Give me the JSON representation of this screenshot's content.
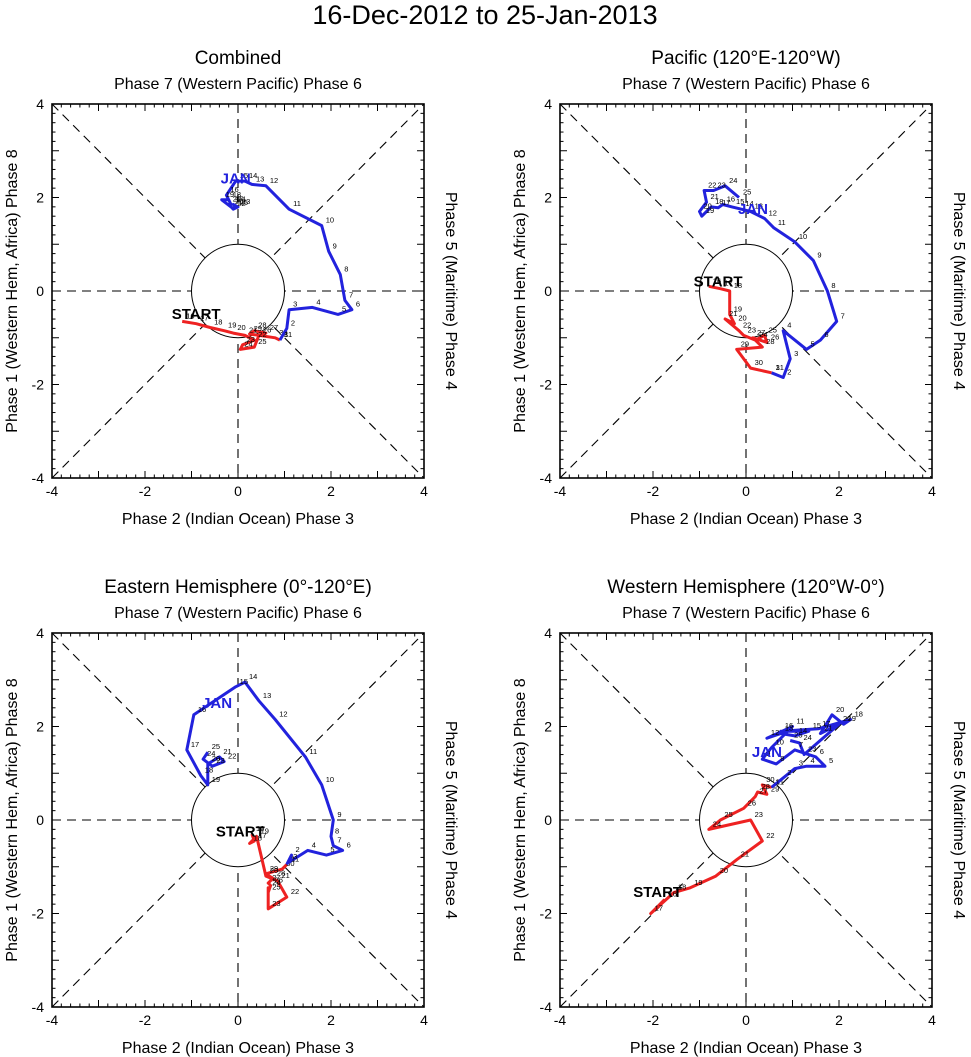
{
  "figure": {
    "title": "16-Dec-2012 to 25-Jan-2013",
    "colors": {
      "december": "#ee2222",
      "january": "#2222dd",
      "axes": "#000000"
    }
  },
  "chart_data": [
    {
      "type": "line",
      "title": "Combined",
      "top_label": "Phase 7 (Western Pacific) Phase 6",
      "xlabel": "Phase 2 (Indian Ocean) Phase 3",
      "ylabel_left": "Phase 1 (Western Hem, Africa) Phase 8",
      "ylabel_right": "Phase 5 (Maritime) Phase 4",
      "xlim": [
        -4,
        4
      ],
      "ylim": [
        -4,
        4
      ],
      "xticks": [
        "-4",
        "-2",
        "0",
        "2",
        "4"
      ],
      "yticks": [
        "-4",
        "-2",
        "0",
        "2",
        "4"
      ],
      "start_label": "START",
      "start_pos": [
        -0.9,
        -0.6
      ],
      "month_label": "JAN",
      "month_pos": [
        -0.05,
        2.3
      ],
      "series": [
        {
          "name": "December",
          "color": "#ee2222",
          "labels": [
            "16",
            "17",
            "18",
            "19",
            "20",
            "21",
            "22",
            "23",
            "24",
            "25",
            "26",
            "27",
            "28",
            "29",
            "30",
            "31"
          ],
          "points": [
            [
              -1.2,
              -0.65
            ],
            [
              -0.9,
              -0.7
            ],
            [
              -0.6,
              -0.78
            ],
            [
              -0.3,
              -0.85
            ],
            [
              -0.1,
              -0.9
            ],
            [
              0.15,
              -0.95
            ],
            [
              0.35,
              -1.05
            ],
            [
              0.1,
              -1.15
            ],
            [
              0.05,
              -1.25
            ],
            [
              0.35,
              -1.2
            ],
            [
              0.45,
              -0.95
            ],
            [
              0.6,
              -0.9
            ],
            [
              0.35,
              -0.85
            ],
            [
              0.25,
              -0.92
            ],
            [
              0.8,
              -1.0
            ],
            [
              0.9,
              -1.05
            ]
          ]
        },
        {
          "name": "January",
          "color": "#2222dd",
          "labels": [
            "1",
            "2",
            "3",
            "4",
            "5",
            "6",
            "7",
            "8",
            "9",
            "10",
            "11",
            "12",
            "13",
            "14",
            "15",
            "16",
            "17",
            "18",
            "19",
            "20",
            "21",
            "22",
            "23",
            "24",
            "25"
          ],
          "points": [
            [
              0.9,
              -1.05
            ],
            [
              1.05,
              -0.8
            ],
            [
              1.1,
              -0.4
            ],
            [
              1.6,
              -0.35
            ],
            [
              2.15,
              -0.5
            ],
            [
              2.45,
              -0.4
            ],
            [
              2.3,
              -0.2
            ],
            [
              2.2,
              0.35
            ],
            [
              1.95,
              0.85
            ],
            [
              1.8,
              1.4
            ],
            [
              1.1,
              1.75
            ],
            [
              0.6,
              2.25
            ],
            [
              0.3,
              2.28
            ],
            [
              0.15,
              2.35
            ],
            [
              -0.05,
              2.35
            ],
            [
              -0.25,
              2.05
            ],
            [
              -0.15,
              1.85
            ],
            [
              -0.2,
              1.95
            ],
            [
              -0.35,
              1.95
            ],
            [
              -0.15,
              1.8
            ],
            [
              -0.2,
              1.85
            ],
            [
              -0.1,
              1.75
            ],
            [
              0.0,
              1.8
            ],
            [
              -0.1,
              1.85
            ],
            [
              -0.05,
              1.78
            ]
          ]
        }
      ]
    },
    {
      "type": "line",
      "title": "Pacific (120°E-120°W)",
      "top_label": "Phase 7 (Western Pacific) Phase 6",
      "xlabel": "Phase 2 (Indian Ocean) Phase 3",
      "ylabel_left": "Phase 1 (Western Hem, Africa) Phase 8",
      "ylabel_right": "Phase 5 (Maritime) Phase 4",
      "xlim": [
        -4,
        4
      ],
      "ylim": [
        -4,
        4
      ],
      "xticks": [
        "-4",
        "-2",
        "0",
        "2",
        "4"
      ],
      "yticks": [
        "-4",
        "-2",
        "0",
        "2",
        "4"
      ],
      "start_label": "START",
      "start_pos": [
        -0.6,
        0.1
      ],
      "month_label": "JAN",
      "month_pos": [
        0.15,
        1.65
      ],
      "series": [
        {
          "name": "December",
          "color": "#ee2222",
          "labels": [
            "16",
            "17",
            "18",
            "19",
            "20",
            "21",
            "22",
            "23",
            "24",
            "25",
            "26",
            "27",
            "28",
            "29",
            "30",
            "31"
          ],
          "points": [
            [
              -0.8,
              0.1
            ],
            [
              -0.55,
              0.05
            ],
            [
              -0.35,
              0.0
            ],
            [
              -0.35,
              -0.5
            ],
            [
              -0.25,
              -0.7
            ],
            [
              -0.45,
              -0.6
            ],
            [
              -0.15,
              -0.85
            ],
            [
              -0.05,
              -0.95
            ],
            [
              0.2,
              -1.05
            ],
            [
              0.4,
              -0.95
            ],
            [
              0.45,
              -1.1
            ],
            [
              0.15,
              -1.0
            ],
            [
              0.35,
              -1.2
            ],
            [
              -0.2,
              -1.25
            ],
            [
              0.1,
              -1.65
            ],
            [
              0.55,
              -1.75
            ]
          ]
        },
        {
          "name": "January",
          "color": "#2222dd",
          "labels": [
            "1",
            "2",
            "3",
            "4",
            "5",
            "6",
            "7",
            "8",
            "9",
            "10",
            "11",
            "12",
            "13",
            "14",
            "15",
            "16",
            "17",
            "18",
            "19",
            "20",
            "21",
            "22",
            "23",
            "24",
            "25"
          ],
          "points": [
            [
              0.55,
              -1.75
            ],
            [
              0.8,
              -1.85
            ],
            [
              0.95,
              -1.45
            ],
            [
              0.8,
              -0.85
            ],
            [
              1.3,
              -1.25
            ],
            [
              1.6,
              -1.05
            ],
            [
              1.95,
              -0.65
            ],
            [
              1.75,
              0.0
            ],
            [
              1.45,
              0.65
            ],
            [
              1.05,
              1.05
            ],
            [
              0.6,
              1.35
            ],
            [
              0.4,
              1.55
            ],
            [
              0.1,
              1.7
            ],
            [
              -0.1,
              1.75
            ],
            [
              -0.3,
              1.8
            ],
            [
              -0.5,
              1.85
            ],
            [
              -0.6,
              1.78
            ],
            [
              -0.75,
              1.8
            ],
            [
              -0.95,
              1.6
            ],
            [
              -1.0,
              1.7
            ],
            [
              -0.85,
              1.9
            ],
            [
              -0.9,
              2.15
            ],
            [
              -0.7,
              2.15
            ],
            [
              -0.45,
              2.25
            ],
            [
              -0.15,
              2.0
            ]
          ]
        }
      ]
    },
    {
      "type": "line",
      "title": "Eastern Hemisphere (0°-120°E)",
      "top_label": "Phase 7 (Western Pacific) Phase 6",
      "xlabel": "Phase 2 (Indian Ocean) Phase 3",
      "ylabel_left": "Phase 1 (Western Hem, Africa) Phase 8",
      "ylabel_right": "Phase 5 (Maritime) Phase 4",
      "xlim": [
        -4,
        4
      ],
      "ylim": [
        -4,
        4
      ],
      "xticks": [
        "-4",
        "-2",
        "0",
        "2",
        "4"
      ],
      "yticks": [
        "-4",
        "-2",
        "0",
        "2",
        "4"
      ],
      "start_label": "START",
      "start_pos": [
        0.05,
        -0.35
      ],
      "month_label": "JAN",
      "month_pos": [
        -0.45,
        2.4
      ],
      "series": [
        {
          "name": "December",
          "color": "#ee2222",
          "labels": [
            "16",
            "17",
            "18",
            "19",
            "20",
            "21",
            "22",
            "23",
            "24",
            "25",
            "26",
            "27",
            "28",
            "29",
            "30",
            "31"
          ],
          "points": [
            [
              0.3,
              -0.3
            ],
            [
              0.35,
              -0.45
            ],
            [
              0.25,
              -0.5
            ],
            [
              0.4,
              -0.35
            ],
            [
              0.6,
              -1.2
            ],
            [
              0.85,
              -1.3
            ],
            [
              1.05,
              -1.65
            ],
            [
              0.65,
              -1.9
            ],
            [
              0.65,
              -1.45
            ],
            [
              0.65,
              -1.55
            ],
            [
              0.7,
              -1.4
            ],
            [
              0.65,
              -1.35
            ],
            [
              0.75,
              -1.25
            ],
            [
              0.6,
              -1.15
            ],
            [
              0.95,
              -1.05
            ],
            [
              1.05,
              -0.95
            ]
          ]
        },
        {
          "name": "January",
          "color": "#2222dd",
          "labels": [
            "1",
            "2",
            "3",
            "4",
            "5",
            "6",
            "7",
            "8",
            "9",
            "10",
            "11",
            "12",
            "13",
            "14",
            "15",
            "16",
            "17",
            "18",
            "19",
            "20",
            "21",
            "22",
            "23",
            "24",
            "25"
          ],
          "points": [
            [
              1.05,
              -0.95
            ],
            [
              1.15,
              -0.75
            ],
            [
              1.1,
              -0.9
            ],
            [
              1.5,
              -0.65
            ],
            [
              1.9,
              -0.75
            ],
            [
              2.25,
              -0.65
            ],
            [
              2.05,
              -0.55
            ],
            [
              2.0,
              -0.35
            ],
            [
              2.05,
              0.0
            ],
            [
              1.8,
              0.75
            ],
            [
              1.45,
              1.35
            ],
            [
              0.8,
              2.15
            ],
            [
              0.45,
              2.55
            ],
            [
              0.15,
              2.95
            ],
            [
              -0.05,
              2.85
            ],
            [
              -0.95,
              2.25
            ],
            [
              -1.1,
              1.5
            ],
            [
              -0.8,
              0.95
            ],
            [
              -0.65,
              0.75
            ],
            [
              -0.65,
              1.2
            ],
            [
              -0.4,
              1.35
            ],
            [
              -0.3,
              1.25
            ],
            [
              -0.55,
              1.15
            ],
            [
              -0.75,
              1.3
            ],
            [
              -0.65,
              1.45
            ]
          ]
        }
      ]
    },
    {
      "type": "line",
      "title": "Western Hemisphere (120°W-0°)",
      "top_label": "Phase 7 (Western Pacific) Phase 6",
      "xlabel": "Phase 2 (Indian Ocean) Phase 3",
      "ylabel_left": "Phase 1 (Western Hem, Africa) Phase 8",
      "ylabel_right": "Phase 5 (Maritime) Phase 4",
      "xlim": [
        -4,
        4
      ],
      "ylim": [
        -4,
        4
      ],
      "xticks": [
        "-4",
        "-2",
        "0",
        "2",
        "4"
      ],
      "yticks": [
        "-4",
        "-2",
        "0",
        "2",
        "4"
      ],
      "start_label": "START",
      "start_pos": [
        -1.9,
        -1.65
      ],
      "month_label": "JAN",
      "month_pos": [
        0.45,
        1.35
      ],
      "series": [
        {
          "name": "December",
          "color": "#ee2222",
          "labels": [
            "16",
            "17",
            "18",
            "19",
            "20",
            "21",
            "22",
            "23",
            "24",
            "25",
            "26",
            "27",
            "28",
            "29",
            "30",
            "31"
          ],
          "points": [
            [
              -1.75,
              -1.7
            ],
            [
              -2.05,
              -2.0
            ],
            [
              -1.55,
              -1.55
            ],
            [
              -1.2,
              -1.45
            ],
            [
              -0.65,
              -1.2
            ],
            [
              -0.2,
              -0.85
            ],
            [
              0.35,
              -0.45
            ],
            [
              0.1,
              0.0
            ],
            [
              -0.8,
              -0.2
            ],
            [
              -0.55,
              0.0
            ],
            [
              -0.05,
              0.25
            ],
            [
              0.2,
              0.5
            ],
            [
              0.25,
              0.6
            ],
            [
              0.45,
              0.55
            ],
            [
              0.35,
              0.75
            ],
            [
              0.55,
              0.7
            ]
          ]
        },
        {
          "name": "January",
          "color": "#2222dd",
          "labels": [
            "1",
            "2",
            "3",
            "4",
            "5",
            "6",
            "7",
            "8",
            "9",
            "10",
            "11",
            "12",
            "13",
            "14",
            "15",
            "16",
            "17",
            "18",
            "19",
            "20",
            "21",
            "22",
            "23",
            "24",
            "25"
          ],
          "points": [
            [
              0.55,
              0.7
            ],
            [
              0.8,
              0.9
            ],
            [
              1.05,
              1.1
            ],
            [
              1.3,
              1.15
            ],
            [
              1.7,
              1.15
            ],
            [
              1.5,
              1.35
            ],
            [
              1.05,
              1.5
            ],
            [
              0.65,
              1.2
            ],
            [
              0.35,
              1.3
            ],
            [
              0.55,
              1.55
            ],
            [
              1.0,
              2.0
            ],
            [
              0.45,
              1.75
            ],
            [
              0.75,
              1.85
            ],
            [
              1.05,
              1.8
            ],
            [
              1.35,
              1.9
            ],
            [
              0.75,
              1.9
            ],
            [
              1.55,
              1.95
            ],
            [
              2.25,
              2.15
            ],
            [
              2.1,
              2.05
            ],
            [
              1.85,
              2.25
            ],
            [
              1.6,
              1.85
            ],
            [
              2.0,
              2.05
            ],
            [
              1.25,
              1.4
            ],
            [
              1.15,
              1.65
            ],
            [
              0.95,
              1.7
            ]
          ]
        }
      ]
    }
  ]
}
